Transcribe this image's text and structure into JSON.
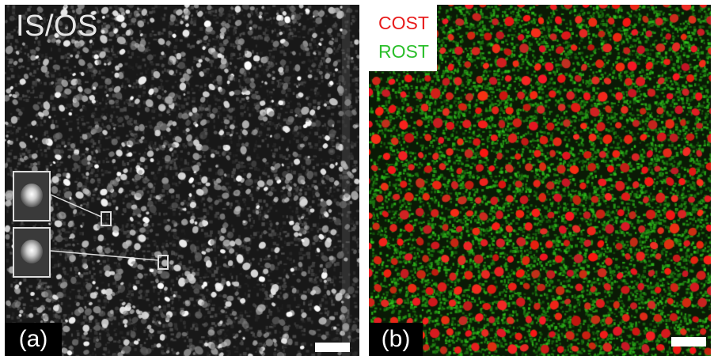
{
  "panel_a": {
    "title": "IS/OS",
    "label": "(a)",
    "colors": {
      "background": "#181818",
      "cones": "#e6e6e6"
    }
  },
  "panel_b": {
    "legend": {
      "cost": "COST",
      "rost": "ROST"
    },
    "label": "(b)",
    "colors": {
      "cost": "#e81c1c",
      "rost": "#2bbf2b",
      "background": "#0a1a05"
    }
  }
}
